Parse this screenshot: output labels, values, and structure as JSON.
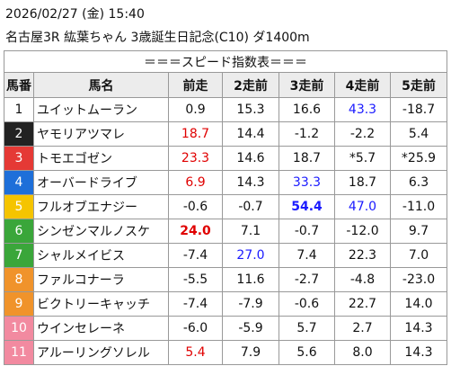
{
  "header": {
    "date": "2026/02/27 (金) 15:40",
    "race": "名古屋3R 紘葉ちゃん 3歳誕生日記念(C10) ダ1400m"
  },
  "table": {
    "caption": "＝＝＝スピード指数表＝＝＝",
    "columns": [
      "馬番",
      "馬名",
      "前走",
      "2走前",
      "3走前",
      "4走前",
      "5走前"
    ],
    "rows": [
      {
        "number": "1",
        "name": "ユイットムーラン",
        "frame_color": "#ffffff",
        "values": [
          "0.9",
          "15.3",
          "16.6",
          "43.3",
          "-18.7"
        ],
        "styles": [
          null,
          null,
          null,
          "blue",
          null
        ]
      },
      {
        "number": "2",
        "name": "ヤモリアツマレ",
        "frame_color": "#222222",
        "values": [
          "18.7",
          "14.4",
          "-1.2",
          "-2.2",
          "5.4"
        ],
        "styles": [
          "red",
          null,
          null,
          null,
          null
        ]
      },
      {
        "number": "3",
        "name": "トモエゴゼン",
        "frame_color": "#e53935",
        "values": [
          "23.3",
          "14.6",
          "18.7",
          "*5.7",
          "*25.9"
        ],
        "styles": [
          "red",
          null,
          null,
          null,
          null
        ]
      },
      {
        "number": "4",
        "name": "オーバードライブ",
        "frame_color": "#1e6fd9",
        "values": [
          "6.9",
          "14.3",
          "33.3",
          "18.7",
          "6.3"
        ],
        "styles": [
          "red",
          null,
          "blue",
          null,
          null
        ]
      },
      {
        "number": "5",
        "name": "フルオブエナジー",
        "frame_color": "#f5c400",
        "values": [
          "-0.6",
          "-0.7",
          "54.4",
          "47.0",
          "-11.0"
        ],
        "styles": [
          null,
          null,
          "blue-bold",
          "blue",
          null
        ]
      },
      {
        "number": "6",
        "name": "シンゼンマルノスケ",
        "frame_color": "#3aa63a",
        "values": [
          "24.0",
          "7.1",
          "-0.7",
          "-12.0",
          "9.7"
        ],
        "styles": [
          "red-bold",
          null,
          null,
          null,
          null
        ]
      },
      {
        "number": "7",
        "name": "シャルメイビス",
        "frame_color": "#3aa63a",
        "values": [
          "-7.4",
          "27.0",
          "7.4",
          "22.3",
          "7.0"
        ],
        "styles": [
          null,
          "blue",
          null,
          null,
          null
        ]
      },
      {
        "number": "8",
        "name": "ファルコナーラ",
        "frame_color": "#f0932b",
        "values": [
          "-5.5",
          "11.6",
          "-2.7",
          "-4.8",
          "-23.0"
        ],
        "styles": [
          null,
          null,
          null,
          null,
          null
        ]
      },
      {
        "number": "9",
        "name": "ビクトリーキャッチ",
        "frame_color": "#f0932b",
        "values": [
          "-7.4",
          "-7.9",
          "-0.6",
          "22.7",
          "14.0"
        ],
        "styles": [
          null,
          null,
          null,
          null,
          null
        ]
      },
      {
        "number": "10",
        "name": "ウインセレーネ",
        "frame_color": "#f28aa0",
        "values": [
          "-6.0",
          "-5.9",
          "5.7",
          "2.7",
          "14.3"
        ],
        "styles": [
          null,
          null,
          null,
          null,
          null
        ]
      },
      {
        "number": "11",
        "name": "アルーリングソレル",
        "frame_color": "#f28aa0",
        "values": [
          "5.4",
          "7.9",
          "5.6",
          "8.0",
          "14.3"
        ],
        "styles": [
          "red",
          null,
          null,
          null,
          null
        ]
      }
    ]
  }
}
